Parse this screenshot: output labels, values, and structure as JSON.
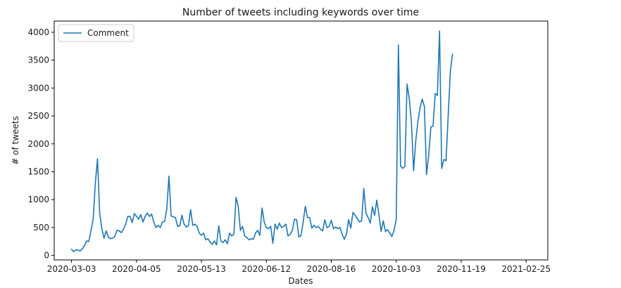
{
  "chart_data": {
    "type": "line",
    "title": "Number of tweets including keywords over time",
    "xlabel": "Dates",
    "ylabel": "# of tweets",
    "xticks": [
      "2020-03-03",
      "2020-04-05",
      "2020-05-13",
      "2020-06-12",
      "2020-08-16",
      "2020-10-03",
      "2020-11-19",
      "2021-02-25"
    ],
    "yticks": [
      0,
      500,
      1000,
      1500,
      2000,
      2500,
      3000,
      3500,
      4000
    ],
    "ylim": [
      -80,
      4200
    ],
    "xlim": [
      -8,
      220
    ],
    "grid": false,
    "legend": {
      "placement": "top-left",
      "entries": [
        "Comment"
      ]
    },
    "series": [
      {
        "name": "Comment",
        "color": "#1f77b4",
        "x_note": "observation index; x tick labels mark indices 0,30,60,90,120,150,180,210",
        "values": [
          110,
          70,
          100,
          95,
          80,
          120,
          180,
          260,
          250,
          450,
          650,
          1300,
          1730,
          760,
          480,
          310,
          440,
          330,
          300,
          310,
          340,
          450,
          440,
          410,
          470,
          560,
          700,
          700,
          590,
          750,
          700,
          650,
          730,
          600,
          700,
          760,
          700,
          740,
          600,
          500,
          540,
          500,
          600,
          610,
          830,
          1420,
          710,
          690,
          680,
          520,
          530,
          720,
          560,
          510,
          530,
          820,
          540,
          560,
          520,
          400,
          360,
          400,
          280,
          300,
          240,
          200,
          260,
          190,
          530,
          260,
          230,
          280,
          210,
          400,
          350,
          380,
          1040,
          880,
          450,
          520,
          350,
          320,
          280,
          300,
          290,
          400,
          450,
          360,
          850,
          600,
          500,
          480,
          520,
          220,
          560,
          470,
          580,
          500,
          520,
          560,
          350,
          380,
          450,
          650,
          640,
          330,
          360,
          600,
          880,
          680,
          680,
          490,
          540,
          500,
          520,
          470,
          440,
          640,
          500,
          520,
          630,
          480,
          510,
          480,
          500,
          380,
          290,
          380,
          640,
          490,
          770,
          720,
          660,
          600,
          620,
          1200,
          760,
          680,
          580,
          870,
          720,
          990,
          730,
          430,
          620,
          430,
          460,
          400,
          340,
          450,
          650,
          3770,
          1600,
          1560,
          1600,
          3070,
          2820,
          2400,
          1520,
          2050,
          2400,
          2650,
          2800,
          2670,
          1450,
          1800,
          2300,
          2320,
          2900,
          2870,
          4020,
          1560,
          1720,
          1700,
          2500,
          3300,
          3610
        ]
      }
    ]
  }
}
